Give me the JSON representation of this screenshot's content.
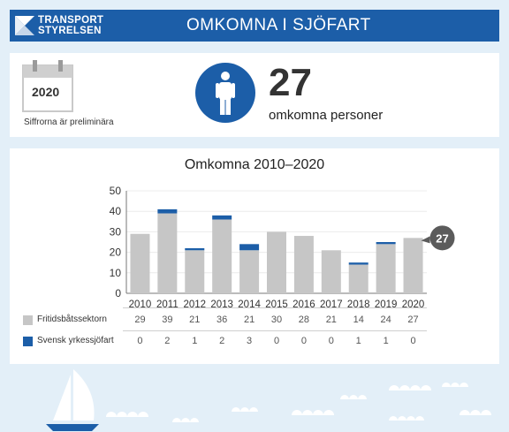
{
  "header": {
    "logo_line1": "TRANSPORT",
    "logo_line2": "STYRELSEN",
    "title": "OMKOMNA I SJÖFART",
    "bg_color": "#1c5ea8"
  },
  "summary": {
    "calendar_year": "2020",
    "preliminary_note": "Siffrorna är preliminära",
    "icon": "person-icon",
    "count": "27",
    "count_label": "omkomna personer"
  },
  "chart_data": {
    "type": "bar",
    "title": "Omkomna 2010–2020",
    "categories": [
      "2010",
      "2011",
      "2012",
      "2013",
      "2014",
      "2015",
      "2016",
      "2017",
      "2018",
      "2019",
      "2020"
    ],
    "series": [
      {
        "name": "Fritidsbåtssektorn",
        "values": [
          29,
          39,
          21,
          36,
          21,
          30,
          28,
          21,
          14,
          24,
          27
        ],
        "color": "#c6c6c6"
      },
      {
        "name": "Svensk yrkessjöfart",
        "values": [
          0,
          2,
          1,
          2,
          3,
          0,
          0,
          0,
          1,
          1,
          0
        ],
        "color": "#1c5ea8"
      }
    ],
    "stacked": true,
    "yticks": [
      0,
      10,
      20,
      30,
      40,
      50
    ],
    "ylim": [
      0,
      50
    ],
    "grid": true,
    "last_value_badge": "27"
  }
}
